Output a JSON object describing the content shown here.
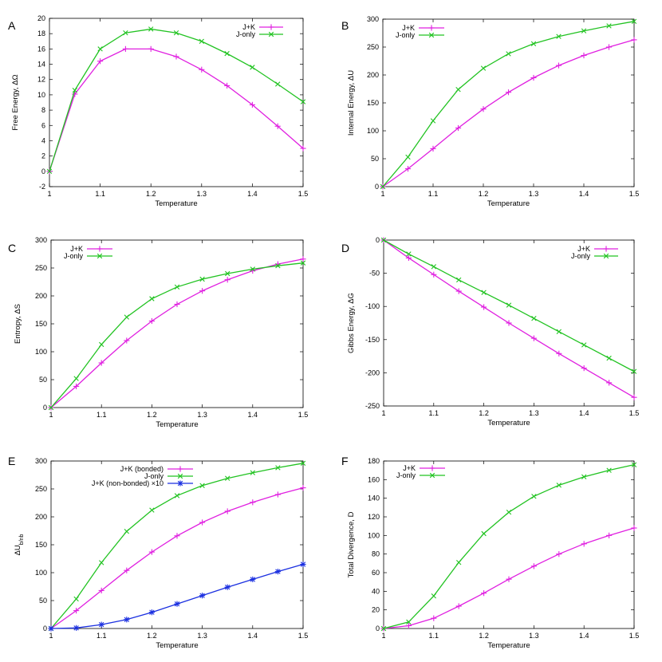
{
  "figure": {
    "background": "#ffffff"
  },
  "chart_data": [
    {
      "panel": "A",
      "type": "line",
      "xlabel": "Temperature",
      "ylabel": "Free Energy, ΔΩ",
      "xlim": [
        1,
        1.5
      ],
      "ylim": [
        -2,
        20
      ],
      "xticks": [
        1,
        1.1,
        1.2,
        1.3,
        1.4,
        1.5
      ],
      "yticks": [
        -2,
        0,
        2,
        4,
        6,
        8,
        10,
        12,
        14,
        16,
        18,
        20
      ],
      "grid": false,
      "legend": "top-right",
      "x": [
        1.0,
        1.05,
        1.1,
        1.15,
        1.2,
        1.25,
        1.3,
        1.35,
        1.4,
        1.45,
        1.5
      ],
      "series": [
        {
          "name": "J+K",
          "color": "#e020e0",
          "marker": "plus",
          "values": [
            0,
            10.1,
            14.4,
            16.0,
            16.0,
            15.0,
            13.3,
            11.2,
            8.7,
            5.9,
            3.0
          ]
        },
        {
          "name": "J-only",
          "color": "#22c322",
          "marker": "cross",
          "values": [
            0,
            10.6,
            16.0,
            18.1,
            18.6,
            18.1,
            17.0,
            15.4,
            13.6,
            11.4,
            9.1
          ]
        }
      ]
    },
    {
      "panel": "B",
      "type": "line",
      "xlabel": "Temperature",
      "ylabel": "Internal Energy, ΔU",
      "xlim": [
        1,
        1.5
      ],
      "ylim": [
        0,
        300
      ],
      "xticks": [
        1,
        1.1,
        1.2,
        1.3,
        1.4,
        1.5
      ],
      "yticks": [
        0,
        50,
        100,
        150,
        200,
        250,
        300
      ],
      "grid": false,
      "legend": "top-left",
      "x": [
        1.0,
        1.05,
        1.1,
        1.15,
        1.2,
        1.25,
        1.3,
        1.35,
        1.4,
        1.45,
        1.5
      ],
      "series": [
        {
          "name": "J+K",
          "color": "#e020e0",
          "marker": "plus",
          "values": [
            0,
            32,
            68,
            105,
            139,
            169,
            195,
            217,
            235,
            250,
            263
          ]
        },
        {
          "name": "J-only",
          "color": "#22c322",
          "marker": "cross",
          "values": [
            0,
            53,
            118,
            174,
            212,
            238,
            256,
            269,
            279,
            288,
            296
          ]
        }
      ]
    },
    {
      "panel": "C",
      "type": "line",
      "xlabel": "Temperature",
      "ylabel": "Entropy, ΔS",
      "xlim": [
        1,
        1.5
      ],
      "ylim": [
        0,
        300
      ],
      "xticks": [
        1,
        1.1,
        1.2,
        1.3,
        1.4,
        1.5
      ],
      "yticks": [
        0,
        50,
        100,
        150,
        200,
        250,
        300
      ],
      "grid": false,
      "legend": "top-left",
      "x": [
        1.0,
        1.05,
        1.1,
        1.15,
        1.2,
        1.25,
        1.3,
        1.35,
        1.4,
        1.45,
        1.5
      ],
      "series": [
        {
          "name": "J+K",
          "color": "#e020e0",
          "marker": "plus",
          "values": [
            0,
            38,
            80,
            120,
            155,
            185,
            209,
            229,
            245,
            257,
            266
          ]
        },
        {
          "name": "J-only",
          "color": "#22c322",
          "marker": "cross",
          "values": [
            0,
            52,
            113,
            162,
            195,
            216,
            230,
            240,
            248,
            254,
            259
          ]
        }
      ]
    },
    {
      "panel": "D",
      "type": "line",
      "xlabel": "Temperature",
      "ylabel": "Gibbs Energy, ΔG",
      "xlim": [
        1,
        1.5
      ],
      "ylim": [
        -250,
        0
      ],
      "xticks": [
        1,
        1.1,
        1.2,
        1.3,
        1.4,
        1.5
      ],
      "yticks": [
        -250,
        -200,
        -150,
        -100,
        -50,
        0
      ],
      "grid": false,
      "legend": "top-right",
      "x": [
        1.0,
        1.05,
        1.1,
        1.15,
        1.2,
        1.25,
        1.3,
        1.35,
        1.4,
        1.45,
        1.5
      ],
      "series": [
        {
          "name": "J+K",
          "color": "#e020e0",
          "marker": "plus",
          "values": [
            0,
            -27,
            -52,
            -77,
            -101,
            -125,
            -148,
            -171,
            -193,
            -215,
            -237
          ]
        },
        {
          "name": "J-only",
          "color": "#22c322",
          "marker": "cross",
          "values": [
            0,
            -21,
            -40,
            -60,
            -79,
            -98,
            -118,
            -138,
            -158,
            -178,
            -198
          ]
        }
      ]
    },
    {
      "panel": "E",
      "type": "line",
      "xlabel": "Temperature",
      "ylabel": "ΔU",
      "ylabel_sub": "b/nb",
      "xlim": [
        1,
        1.5
      ],
      "ylim": [
        0,
        300
      ],
      "xticks": [
        1,
        1.1,
        1.2,
        1.3,
        1.4,
        1.5
      ],
      "yticks": [
        0,
        50,
        100,
        150,
        200,
        250,
        300
      ],
      "grid": false,
      "legend": "top-left",
      "x": [
        1.0,
        1.05,
        1.1,
        1.15,
        1.2,
        1.25,
        1.3,
        1.35,
        1.4,
        1.45,
        1.5
      ],
      "series": [
        {
          "name": "J+K (bonded)",
          "color": "#e020e0",
          "marker": "plus",
          "values": [
            0,
            32,
            68,
            104,
            137,
            166,
            190,
            210,
            226,
            240,
            252
          ]
        },
        {
          "name": "J-only",
          "color": "#22c322",
          "marker": "cross",
          "values": [
            0,
            53,
            118,
            174,
            212,
            238,
            256,
            269,
            279,
            288,
            296
          ]
        },
        {
          "name": "J+K (non-bonded) ×10",
          "color": "#1a2fe0",
          "marker": "star",
          "values": [
            0,
            1,
            7,
            16,
            29,
            44,
            59,
            74,
            88,
            102,
            115
          ]
        }
      ]
    },
    {
      "panel": "F",
      "type": "line",
      "xlabel": "Temperature",
      "ylabel": "Total Divergence, D",
      "xlim": [
        1,
        1.5
      ],
      "ylim": [
        0,
        180
      ],
      "xticks": [
        1,
        1.1,
        1.2,
        1.3,
        1.4,
        1.5
      ],
      "yticks": [
        0,
        20,
        40,
        60,
        80,
        100,
        120,
        140,
        160,
        180
      ],
      "grid": false,
      "legend": "top-left",
      "x": [
        1.0,
        1.05,
        1.1,
        1.15,
        1.2,
        1.25,
        1.3,
        1.35,
        1.4,
        1.45,
        1.5
      ],
      "series": [
        {
          "name": "J+K",
          "color": "#e020e0",
          "marker": "plus",
          "values": [
            0,
            3,
            11,
            24,
            38,
            53,
            67,
            80,
            91,
            100,
            108
          ]
        },
        {
          "name": "J-only",
          "color": "#22c322",
          "marker": "cross",
          "values": [
            0,
            7,
            35,
            71,
            102,
            125,
            142,
            154,
            163,
            170,
            176
          ]
        }
      ]
    }
  ]
}
